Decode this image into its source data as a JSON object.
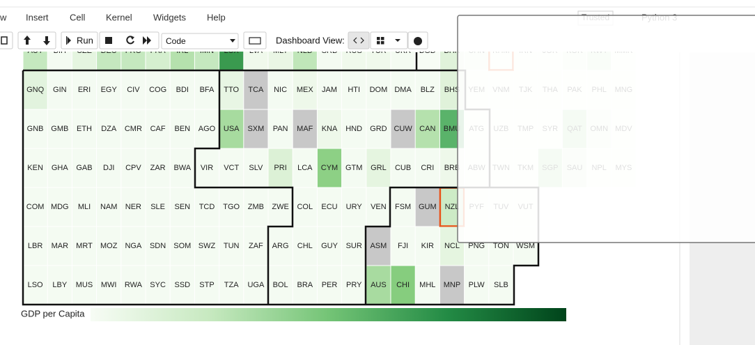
{
  "menu": [
    "w",
    "Insert",
    "Cell",
    "Kernel",
    "Widgets",
    "Help"
  ],
  "toolbar": {
    "run": "Run",
    "cell_type": "Code",
    "dashboard_label": "Dashboard View:"
  },
  "kernel": {
    "trusted": "Trusted",
    "name": "Python 3"
  },
  "tiles": {
    "selected": [
      "KHM",
      "NZL"
    ],
    "rows": [
      {
        "labels": [
          "AUT",
          "BIH",
          "CZE",
          "DEU",
          "FRO",
          "FRA",
          "IRL",
          "IMN",
          "LUX",
          "LVA",
          "MLT",
          "NLD",
          "SRB",
          "RUS",
          "TUR",
          "UKR",
          "BGD",
          "BHR",
          "CHN",
          "KHM",
          "IRN",
          "JOR",
          "KOR",
          "KWT",
          "MMR"
        ],
        "fills": [
          "#c5e8bf",
          "#f4fbf2",
          "#e5f5e0",
          "#c5e8bf",
          "#c5e8bf",
          "#d5efcf",
          "#b5e1ad",
          "#c5e8bf",
          "#3a9a4f",
          "#f0f9ec",
          "#eaf6e5",
          "#c0e6b9",
          "#f4fbf2",
          "#f0f9ec",
          "#f0f9ec",
          "#f4fbf2",
          "#f7fcf5",
          "#e0f2da",
          "#e5f5e0",
          "#f4fbf2",
          "#f4fbf2",
          "#f4fbf2",
          "#e5f5e0",
          "#d5efcf",
          "#f4fbf2"
        ]
      },
      {
        "labels": [
          "GNQ",
          "GIN",
          "ERI",
          "EGY",
          "CIV",
          "COG",
          "BDI",
          "BFA",
          "TTO",
          "TCA",
          "NIC",
          "MEX",
          "JAM",
          "HTI",
          "DOM",
          "DMA",
          "BLZ",
          "BHS",
          "YEM",
          "VNM",
          "TJK",
          "THA",
          "PAK",
          "PHL",
          "MNG"
        ],
        "fills": [
          "#e2f3de",
          "#f4fbf2",
          "#f4fbf2",
          "#f4fbf2",
          "#f4fbf2",
          "#f4fbf2",
          "#f4fbf2",
          "#f4fbf2",
          "#e8f6e4",
          "#c8c8c8",
          "#f4fbf2",
          "#eef8ea",
          "#f4fbf2",
          "#f4fbf2",
          "#f4fbf2",
          "#f4fbf2",
          "#f4fbf2",
          "#e0f2da",
          "#f4fbf2",
          "#f4fbf2",
          "#f4fbf2",
          "#f4fbf2",
          "#f4fbf2",
          "#f4fbf2",
          "#f4fbf2"
        ]
      },
      {
        "labels": [
          "GNB",
          "GMB",
          "ETH",
          "DZA",
          "CMR",
          "CAF",
          "BEN",
          "AGO",
          "USA",
          "SXM",
          "PAN",
          "MAF",
          "KNA",
          "HND",
          "GRD",
          "CUW",
          "CAN",
          "BMU",
          "ATG",
          "UZB",
          "TMP",
          "SYR",
          "QAT",
          "OMN",
          "MDV"
        ],
        "fills": [
          "#f4fbf2",
          "#f4fbf2",
          "#f4fbf2",
          "#f4fbf2",
          "#f4fbf2",
          "#f4fbf2",
          "#f4fbf2",
          "#f4fbf2",
          "#a7db9f",
          "#c8c8c8",
          "#f4fbf2",
          "#c8c8c8",
          "#eef8ea",
          "#f4fbf2",
          "#f4fbf2",
          "#c8c8c8",
          "#b5e1ad",
          "#5ab36a",
          "#f4fbf2",
          "#f4fbf2",
          "#f4fbf2",
          "#f4fbf2",
          "#b5e1ad",
          "#e5f5e0",
          "#f4fbf2"
        ]
      },
      {
        "labels": [
          "KEN",
          "GHA",
          "GAB",
          "DJI",
          "CPV",
          "ZAR",
          "BWA",
          "VIR",
          "VCT",
          "SLV",
          "PRI",
          "LCA",
          "CYM",
          "GTM",
          "GRL",
          "CUB",
          "CRI",
          "BRB",
          "ABW",
          "TWN",
          "TKM",
          "SGP",
          "SAU",
          "NPL",
          "MYS"
        ],
        "fills": [
          "#f4fbf2",
          "#f4fbf2",
          "#f4fbf2",
          "#f4fbf2",
          "#f4fbf2",
          "#f4fbf2",
          "#f4fbf2",
          "#f4fbf2",
          "#f4fbf2",
          "#f4fbf2",
          "#dcf1d6",
          "#f4fbf2",
          "#8dd085",
          "#f4fbf2",
          "#e5f5e0",
          "#f4fbf2",
          "#f4fbf2",
          "#eef8ea",
          "#f4fbf2",
          "#f4fbf2",
          "#f4fbf2",
          "#b5e1ad",
          "#e0f2da",
          "#f4fbf2",
          "#f4fbf2"
        ]
      },
      {
        "labels": [
          "COM",
          "MDG",
          "MLI",
          "NAM",
          "NER",
          "SLE",
          "SEN",
          "TCD",
          "TGO",
          "ZMB",
          "ZWE",
          "COL",
          "ECU",
          "URY",
          "VEN",
          "FSM",
          "GUM",
          "NZL",
          "PYF",
          "TUV",
          "VUT"
        ],
        "fills": [
          "#f4fbf2",
          "#f4fbf2",
          "#f4fbf2",
          "#f4fbf2",
          "#f4fbf2",
          "#f4fbf2",
          "#f4fbf2",
          "#f4fbf2",
          "#f4fbf2",
          "#f4fbf2",
          "#f4fbf2",
          "#f4fbf2",
          "#f4fbf2",
          "#f4fbf2",
          "#f4fbf2",
          "#f4fbf2",
          "#c8c8c8",
          "#cdebc6",
          "#f4fbf2",
          "#f4fbf2",
          "#f4fbf2"
        ]
      },
      {
        "labels": [
          "LBR",
          "MAR",
          "MRT",
          "MOZ",
          "NGA",
          "SDN",
          "SOM",
          "SWZ",
          "TUN",
          "ZAF",
          "ARG",
          "CHL",
          "GUY",
          "SUR",
          "ASM",
          "FJI",
          "KIR",
          "NCL",
          "PNG",
          "TON",
          "WSM"
        ],
        "fills": [
          "#f4fbf2",
          "#f4fbf2",
          "#f4fbf2",
          "#f4fbf2",
          "#f4fbf2",
          "#f4fbf2",
          "#f4fbf2",
          "#f4fbf2",
          "#f4fbf2",
          "#f4fbf2",
          "#f4fbf2",
          "#f4fbf2",
          "#f4fbf2",
          "#f4fbf2",
          "#c8c8c8",
          "#f4fbf2",
          "#f4fbf2",
          "#e5f5e0",
          "#f4fbf2",
          "#f4fbf2",
          "#f4fbf2"
        ]
      },
      {
        "labels": [
          "LSO",
          "LBY",
          "MUS",
          "MWI",
          "RWA",
          "SYC",
          "SSD",
          "STP",
          "TZA",
          "UGA",
          "BOL",
          "BRA",
          "PER",
          "PRY",
          "AUS",
          "CHI",
          "MHL",
          "MNP",
          "PLW",
          "SLB"
        ],
        "fills": [
          "#f4fbf2",
          "#f4fbf2",
          "#f4fbf2",
          "#f4fbf2",
          "#f4fbf2",
          "#f4fbf2",
          "#f4fbf2",
          "#f4fbf2",
          "#f4fbf2",
          "#f4fbf2",
          "#f4fbf2",
          "#f4fbf2",
          "#f4fbf2",
          "#f4fbf2",
          "#a8dba0",
          "#86cd7e",
          "#f4fbf2",
          "#c8c8c8",
          "#f4fbf2",
          "#f4fbf2"
        ]
      }
    ]
  },
  "legend": {
    "title": "GDP per Capita",
    "colors": [
      "#f7fcf5",
      "#c7e9c0",
      "#74c476",
      "#238b45",
      "#00441b"
    ]
  }
}
